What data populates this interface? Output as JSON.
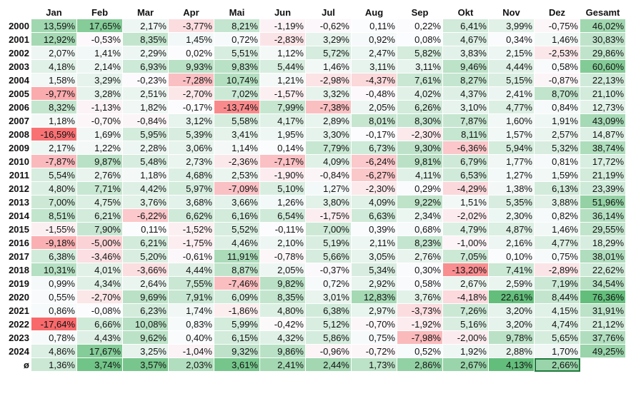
{
  "colors": {
    "negative": "#f8696b",
    "neutral": "#fcfcff",
    "positive": "#63be7b",
    "selection_border": "#1e7a3c"
  },
  "table": {
    "corner_label": "",
    "columns": [
      "Jan",
      "Feb",
      "Mar",
      "Apr",
      "Mai",
      "Jun",
      "Jul",
      "Aug",
      "Sep",
      "Okt",
      "Nov",
      "Dez",
      "Gesamt"
    ],
    "rows": [
      {
        "label": "2000",
        "cells": [
          "13,59%",
          "17,65%",
          "2,17%",
          "-3,77%",
          "8,21%",
          "-1,19%",
          "-0,62%",
          "0,11%",
          "0,22%",
          "6,41%",
          "3,99%",
          "-0,75%",
          "46,02%"
        ]
      },
      {
        "label": "2001",
        "cells": [
          "12,92%",
          "-0,53%",
          "8,35%",
          "1,45%",
          "0,72%",
          "-2,83%",
          "3,29%",
          "0,92%",
          "0,08%",
          "4,67%",
          "0,34%",
          "1,46%",
          "30,83%"
        ]
      },
      {
        "label": "2002",
        "cells": [
          "2,07%",
          "1,41%",
          "2,29%",
          "0,02%",
          "5,51%",
          "1,12%",
          "5,72%",
          "2,47%",
          "5,82%",
          "3,83%",
          "2,15%",
          "-2,53%",
          "29,86%"
        ]
      },
      {
        "label": "2003",
        "cells": [
          "4,18%",
          "2,14%",
          "6,93%",
          "9,93%",
          "9,83%",
          "5,44%",
          "1,46%",
          "3,11%",
          "3,11%",
          "9,46%",
          "4,44%",
          "0,58%",
          "60,60%"
        ]
      },
      {
        "label": "2004",
        "cells": [
          "1,58%",
          "3,29%",
          "-0,23%",
          "-7,28%",
          "10,74%",
          "1,21%",
          "-2,98%",
          "-4,37%",
          "7,61%",
          "8,27%",
          "5,15%",
          "-0,87%",
          "22,13%"
        ]
      },
      {
        "label": "2005",
        "cells": [
          "-9,77%",
          "3,28%",
          "2,51%",
          "-2,70%",
          "7,02%",
          "-1,57%",
          "3,32%",
          "-0,48%",
          "4,02%",
          "4,37%",
          "2,41%",
          "8,70%",
          "21,10%"
        ]
      },
      {
        "label": "2006",
        "cells": [
          "8,32%",
          "-1,13%",
          "1,82%",
          "-0,17%",
          "-13,74%",
          "7,99%",
          "-7,38%",
          "2,05%",
          "6,26%",
          "3,10%",
          "4,77%",
          "0,84%",
          "12,73%"
        ]
      },
      {
        "label": "2007",
        "cells": [
          "1,18%",
          "-0,70%",
          "-0,84%",
          "3,12%",
          "5,58%",
          "4,17%",
          "2,89%",
          "8,01%",
          "8,30%",
          "7,87%",
          "1,60%",
          "1,91%",
          "43,09%"
        ]
      },
      {
        "label": "2008",
        "cells": [
          "-16,59%",
          "1,69%",
          "5,95%",
          "5,39%",
          "3,41%",
          "1,95%",
          "3,30%",
          "-0,17%",
          "-2,30%",
          "8,11%",
          "1,57%",
          "2,57%",
          "14,87%"
        ]
      },
      {
        "label": "2009",
        "cells": [
          "2,17%",
          "1,22%",
          "2,28%",
          "3,06%",
          "1,14%",
          "0,14%",
          "7,79%",
          "6,73%",
          "9,30%",
          "-6,36%",
          "5,94%",
          "5,32%",
          "38,74%"
        ]
      },
      {
        "label": "2010",
        "cells": [
          "-7,87%",
          "9,87%",
          "5,48%",
          "2,73%",
          "-2,36%",
          "-7,17%",
          "4,09%",
          "-6,24%",
          "9,81%",
          "6,79%",
          "1,77%",
          "0,81%",
          "17,72%"
        ]
      },
      {
        "label": "2011",
        "cells": [
          "5,54%",
          "2,76%",
          "1,18%",
          "4,68%",
          "2,53%",
          "-1,90%",
          "-0,84%",
          "-6,27%",
          "4,11%",
          "6,53%",
          "1,27%",
          "1,59%",
          "21,19%"
        ]
      },
      {
        "label": "2012",
        "cells": [
          "4,80%",
          "7,71%",
          "4,42%",
          "5,97%",
          "-7,09%",
          "5,10%",
          "1,27%",
          "-2,30%",
          "0,29%",
          "-4,29%",
          "1,38%",
          "6,13%",
          "23,39%"
        ]
      },
      {
        "label": "2013",
        "cells": [
          "7,00%",
          "4,75%",
          "3,76%",
          "3,68%",
          "3,66%",
          "1,26%",
          "3,80%",
          "4,09%",
          "9,22%",
          "1,51%",
          "5,35%",
          "3,88%",
          "51,96%"
        ]
      },
      {
        "label": "2014",
        "cells": [
          "8,51%",
          "6,21%",
          "-6,22%",
          "6,62%",
          "6,16%",
          "6,54%",
          "-1,75%",
          "6,63%",
          "2,34%",
          "-2,02%",
          "2,30%",
          "0,82%",
          "36,14%"
        ]
      },
      {
        "label": "2015",
        "cells": [
          "-1,55%",
          "7,90%",
          "0,11%",
          "-1,52%",
          "5,52%",
          "-0,11%",
          "7,00%",
          "0,39%",
          "0,68%",
          "4,79%",
          "4,87%",
          "1,46%",
          "29,55%"
        ]
      },
      {
        "label": "2016",
        "cells": [
          "-9,18%",
          "-5,00%",
          "6,21%",
          "-1,75%",
          "4,46%",
          "2,10%",
          "5,19%",
          "2,11%",
          "8,23%",
          "-1,00%",
          "2,16%",
          "4,77%",
          "18,29%"
        ]
      },
      {
        "label": "2017",
        "cells": [
          "6,38%",
          "-3,46%",
          "5,20%",
          "-0,61%",
          "11,91%",
          "-0,78%",
          "5,66%",
          "3,05%",
          "2,76%",
          "7,05%",
          "0,10%",
          "0,75%",
          "38,01%"
        ]
      },
      {
        "label": "2018",
        "cells": [
          "10,31%",
          "4,01%",
          "-3,66%",
          "4,44%",
          "8,87%",
          "2,05%",
          "-0,37%",
          "5,34%",
          "0,30%",
          "-13,20%",
          "7,41%",
          "-2,89%",
          "22,62%"
        ]
      },
      {
        "label": "2019",
        "cells": [
          "0,99%",
          "4,34%",
          "2,64%",
          "7,55%",
          "-7,46%",
          "9,82%",
          "0,72%",
          "2,92%",
          "0,58%",
          "2,67%",
          "2,59%",
          "7,19%",
          "34,54%"
        ]
      },
      {
        "label": "2020",
        "cells": [
          "0,55%",
          "-2,70%",
          "9,69%",
          "7,91%",
          "6,09%",
          "8,35%",
          "3,01%",
          "12,83%",
          "3,76%",
          "-4,18%",
          "22,61%",
          "8,44%",
          "76,36%"
        ]
      },
      {
        "label": "2021",
        "cells": [
          "0,86%",
          "-0,08%",
          "6,23%",
          "1,74%",
          "-1,86%",
          "4,80%",
          "6,38%",
          "2,97%",
          "-3,73%",
          "7,26%",
          "3,20%",
          "4,15%",
          "31,91%"
        ]
      },
      {
        "label": "2022",
        "cells": [
          "-17,64%",
          "6,66%",
          "10,08%",
          "0,83%",
          "5,99%",
          "-0,42%",
          "5,12%",
          "-0,70%",
          "-1,92%",
          "5,16%",
          "3,20%",
          "4,74%",
          "21,12%"
        ]
      },
      {
        "label": "2023",
        "cells": [
          "0,78%",
          "4,43%",
          "9,62%",
          "0,40%",
          "6,15%",
          "4,32%",
          "5,86%",
          "0,75%",
          "-7,98%",
          "-2,00%",
          "9,78%",
          "5,65%",
          "37,76%"
        ]
      },
      {
        "label": "2024",
        "cells": [
          "4,86%",
          "17,67%",
          "3,25%",
          "-1,04%",
          "9,32%",
          "9,86%",
          "-0,96%",
          "-0,72%",
          "0,52%",
          "1,92%",
          "2,88%",
          "1,70%",
          "49,25%"
        ]
      }
    ],
    "average_row": {
      "label": "ø",
      "cells": [
        "1,36%",
        "3,74%",
        "3,57%",
        "2,03%",
        "3,61%",
        "2,41%",
        "2,44%",
        "1,73%",
        "2,86%",
        "2,67%",
        "4,13%",
        "2,66%"
      ],
      "selected_index": 11
    }
  }
}
